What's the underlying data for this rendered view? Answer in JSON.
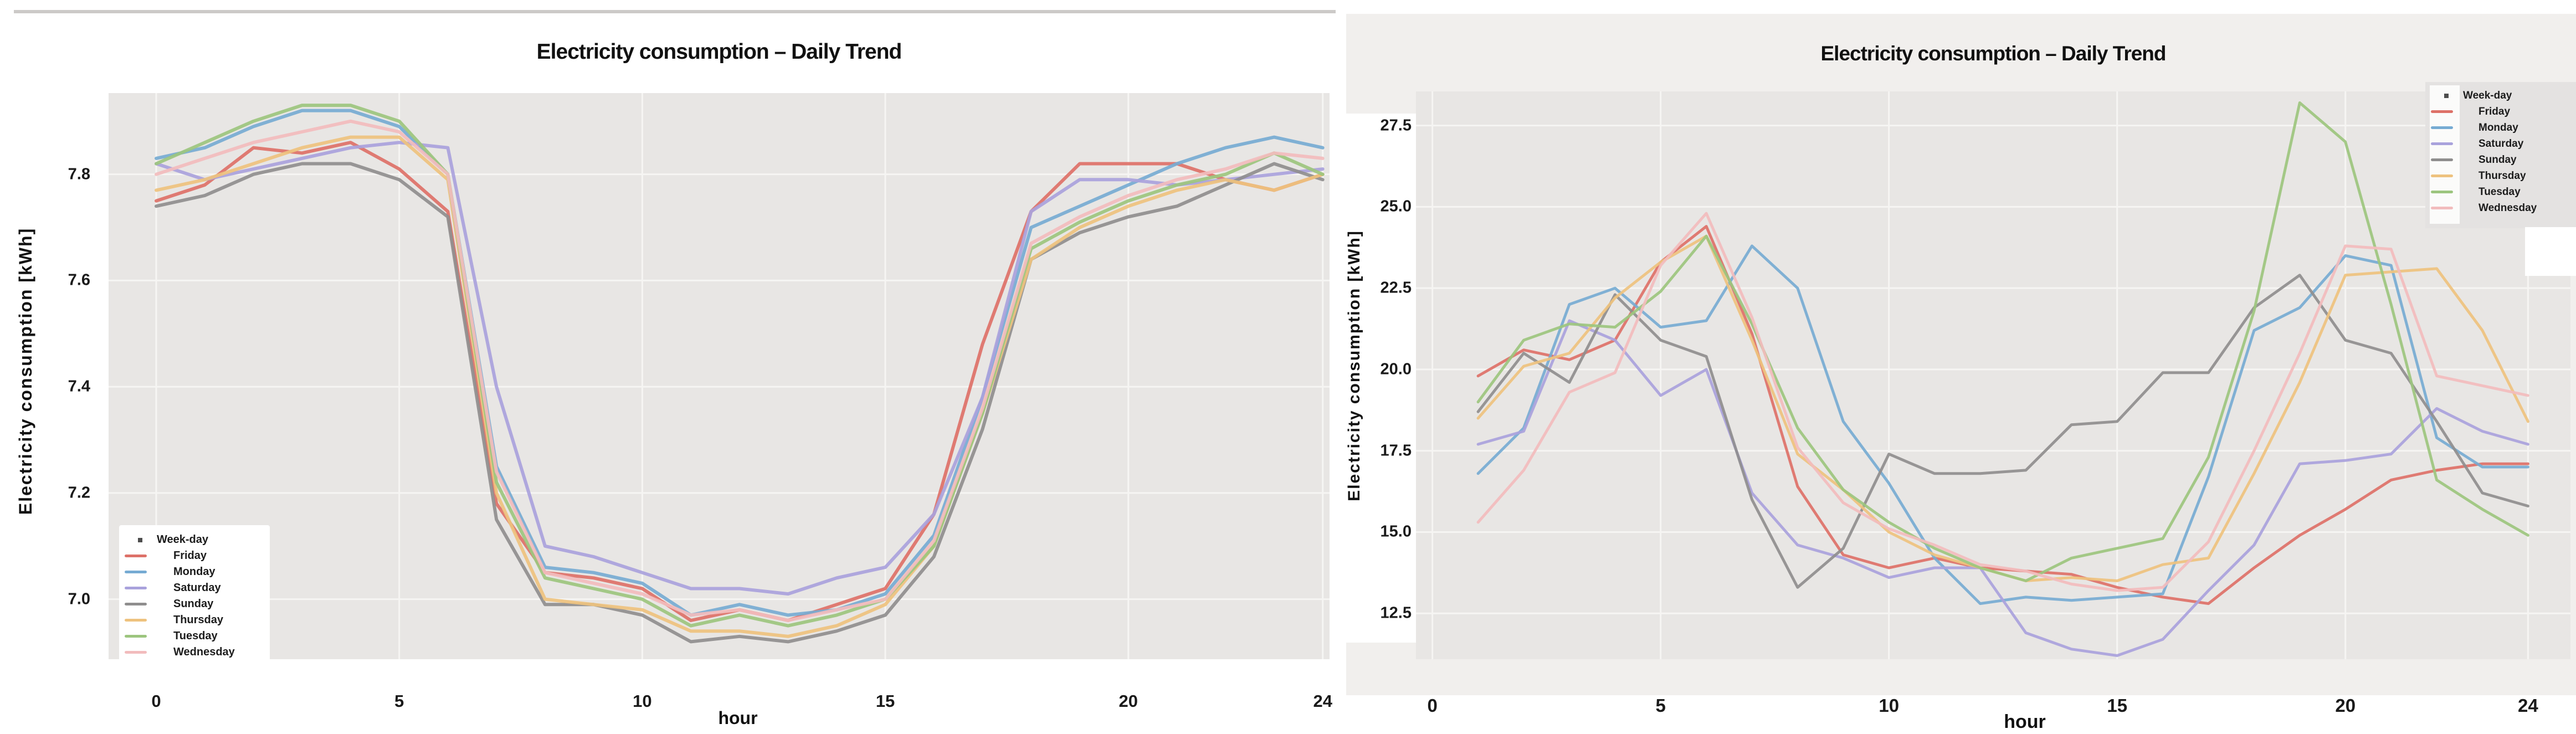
{
  "chart_data": [
    {
      "type": "line",
      "title": "Electricity consumption – Daily Trend",
      "xlabel": "hour",
      "ylabel": "Electricity consumption [kWh]",
      "x_ticks": [
        0,
        5,
        10,
        15,
        20,
        24
      ],
      "x_tick_labels": [
        "0",
        "5",
        "10",
        "15",
        "20",
        "24"
      ],
      "y_ticks": [
        7.0,
        7.2,
        7.4,
        7.6,
        7.8
      ],
      "y_tick_labels": [
        "7.0",
        "7.2",
        "7.4",
        "7.6",
        "7.8"
      ],
      "xlim": [
        -0.98,
        24.14
      ],
      "ylim": [
        6.887,
        7.953
      ],
      "grid": true,
      "colors": {
        "plot_bg": "#e8e6e4",
        "grid": "#f6f5f3"
      },
      "legend": {
        "position": "bottom-left",
        "entries": [
          {
            "label": "Week-day",
            "color": "#4d4d4d",
            "marker": true
          },
          {
            "label": "Friday",
            "color": "#dd7168"
          },
          {
            "label": "Monday",
            "color": "#76abd3"
          },
          {
            "label": "Saturday",
            "color": "#a9a2dc"
          },
          {
            "label": "Sunday",
            "color": "#8f8e8e"
          },
          {
            "label": "Thursday",
            "color": "#eec27e"
          },
          {
            "label": "Tuesday",
            "color": "#9cc57e"
          },
          {
            "label": "Wednesday",
            "color": "#f2bcbd"
          }
        ]
      },
      "x_start_hour": 0,
      "series": [
        {
          "name": "Friday",
          "color": "#dd7168",
          "values": [
            7.75,
            7.78,
            7.85,
            7.84,
            7.86,
            7.81,
            7.73,
            7.18,
            7.05,
            7.04,
            7.02,
            6.96,
            6.98,
            6.96,
            6.99,
            7.02,
            7.16,
            7.48,
            7.73,
            7.82,
            7.82,
            7.82,
            7.79,
            7.77,
            7.8
          ]
        },
        {
          "name": "Monday",
          "color": "#76abd3",
          "values": [
            7.83,
            7.85,
            7.89,
            7.92,
            7.92,
            7.89,
            7.8,
            7.25,
            7.06,
            7.05,
            7.03,
            6.97,
            6.99,
            6.97,
            6.98,
            7.01,
            7.12,
            7.38,
            7.7,
            7.74,
            7.78,
            7.82,
            7.85,
            7.87,
            7.85
          ]
        },
        {
          "name": "Saturday",
          "color": "#a9a2dc",
          "values": [
            7.82,
            7.79,
            7.81,
            7.83,
            7.85,
            7.86,
            7.85,
            7.4,
            7.1,
            7.08,
            7.05,
            7.02,
            7.02,
            7.01,
            7.04,
            7.06,
            7.16,
            7.38,
            7.73,
            7.79,
            7.79,
            7.78,
            7.79,
            7.8,
            7.81
          ]
        },
        {
          "name": "Sunday",
          "color": "#8f8e8e",
          "values": [
            7.74,
            7.76,
            7.8,
            7.82,
            7.82,
            7.79,
            7.72,
            7.15,
            6.99,
            6.99,
            6.97,
            6.92,
            6.93,
            6.92,
            6.94,
            6.97,
            7.08,
            7.32,
            7.64,
            7.69,
            7.72,
            7.74,
            7.78,
            7.82,
            7.79
          ]
        },
        {
          "name": "Thursday",
          "color": "#eec27e",
          "values": [
            7.77,
            7.79,
            7.82,
            7.85,
            7.87,
            7.87,
            7.79,
            7.2,
            7.0,
            6.99,
            6.98,
            6.94,
            6.94,
            6.93,
            6.95,
            6.99,
            7.1,
            7.35,
            7.64,
            7.7,
            7.74,
            7.77,
            7.79,
            7.77,
            7.8
          ]
        },
        {
          "name": "Tuesday",
          "color": "#9cc57e",
          "values": [
            7.82,
            7.86,
            7.9,
            7.93,
            7.93,
            7.9,
            7.8,
            7.22,
            7.04,
            7.02,
            7.0,
            6.95,
            6.97,
            6.95,
            6.97,
            7.0,
            7.1,
            7.35,
            7.66,
            7.71,
            7.75,
            7.78,
            7.8,
            7.84,
            7.8
          ]
        },
        {
          "name": "Wednesday",
          "color": "#f2bcbd",
          "values": [
            7.8,
            7.83,
            7.86,
            7.88,
            7.9,
            7.88,
            7.8,
            7.24,
            7.05,
            7.03,
            7.01,
            6.97,
            6.98,
            6.96,
            6.98,
            7.0,
            7.11,
            7.36,
            7.67,
            7.72,
            7.76,
            7.79,
            7.81,
            7.84,
            7.83
          ]
        }
      ]
    },
    {
      "type": "line",
      "title": "Electricity consumption – Daily Trend",
      "xlabel": "hour",
      "ylabel": "Electricity consumption [kWh]",
      "x_ticks": [
        0,
        5,
        10,
        15,
        20,
        24
      ],
      "x_tick_labels": [
        "0",
        "5",
        "10",
        "15",
        "20",
        "24"
      ],
      "y_ticks": [
        12.5,
        15.0,
        17.5,
        20.0,
        22.5,
        25.0,
        27.5
      ],
      "y_tick_labels": [
        "12.5",
        "15.0",
        "17.5",
        "20.0",
        "22.5",
        "25.0",
        "27.5"
      ],
      "xlim": [
        -0.36,
        24.93
      ],
      "ylim": [
        11.09,
        28.55
      ],
      "grid": true,
      "colors": {
        "plot_bg": "#e8e6e4",
        "grid": "#f6f5f3"
      },
      "legend": {
        "position": "top-right",
        "entries": [
          {
            "label": "Week-day",
            "color": "#4d4d4d",
            "marker": true
          },
          {
            "label": "Friday",
            "color": "#dd7168"
          },
          {
            "label": "Monday",
            "color": "#76abd3"
          },
          {
            "label": "Saturday",
            "color": "#a9a2dc"
          },
          {
            "label": "Sunday",
            "color": "#8f8e8e"
          },
          {
            "label": "Thursday",
            "color": "#eec27e"
          },
          {
            "label": "Tuesday",
            "color": "#9cc57e"
          },
          {
            "label": "Wednesday",
            "color": "#f2bcbd"
          }
        ]
      },
      "x_start_hour": 1,
      "series": [
        {
          "name": "Friday",
          "color": "#dd7168",
          "values": [
            19.8,
            20.6,
            20.3,
            20.9,
            23.3,
            24.4,
            21.1,
            16.4,
            14.3,
            13.9,
            14.2,
            13.9,
            13.8,
            13.7,
            13.3,
            13.0,
            12.8,
            13.9,
            14.9,
            15.7,
            16.6,
            16.9,
            17.1,
            17.1
          ]
        },
        {
          "name": "Monday",
          "color": "#76abd3",
          "values": [
            16.8,
            18.2,
            22.0,
            22.5,
            21.3,
            21.5,
            23.8,
            22.5,
            18.4,
            16.5,
            14.2,
            12.8,
            13.0,
            12.9,
            13.0,
            13.1,
            16.7,
            21.2,
            21.9,
            23.5,
            23.2,
            17.9,
            17.0,
            17.0
          ]
        },
        {
          "name": "Saturday",
          "color": "#a9a2dc",
          "values": [
            17.7,
            18.1,
            21.5,
            20.9,
            19.2,
            20.0,
            16.2,
            14.6,
            14.2,
            13.6,
            13.9,
            13.9,
            11.9,
            11.4,
            11.2,
            11.7,
            13.2,
            14.6,
            17.1,
            17.2,
            17.4,
            18.8,
            18.1,
            17.7
          ]
        },
        {
          "name": "Sunday",
          "color": "#8f8e8e",
          "values": [
            18.7,
            20.5,
            19.6,
            22.3,
            20.9,
            20.4,
            16.0,
            13.3,
            14.5,
            17.4,
            16.8,
            16.8,
            16.9,
            18.3,
            18.4,
            19.9,
            19.9,
            21.9,
            22.9,
            20.9,
            20.5,
            18.4,
            16.2,
            15.8
          ]
        },
        {
          "name": "Thursday",
          "color": "#eec27e",
          "values": [
            18.5,
            20.1,
            20.5,
            22.2,
            23.3,
            24.1,
            20.9,
            17.4,
            16.3,
            15.0,
            14.3,
            13.9,
            13.5,
            13.6,
            13.5,
            14.0,
            14.2,
            16.8,
            19.6,
            22.9,
            23.0,
            23.1,
            21.2,
            18.4
          ]
        },
        {
          "name": "Tuesday",
          "color": "#9cc57e",
          "values": [
            19.0,
            20.9,
            21.4,
            21.3,
            22.4,
            24.1,
            21.4,
            18.2,
            16.3,
            15.3,
            14.5,
            13.9,
            13.5,
            14.2,
            14.5,
            14.8,
            17.3,
            21.8,
            28.2,
            27.0,
            22.0,
            16.6,
            15.7,
            14.9
          ]
        },
        {
          "name": "Wednesday",
          "color": "#f2bcbd",
          "values": [
            15.3,
            16.9,
            19.3,
            19.9,
            23.2,
            24.8,
            21.6,
            17.6,
            15.9,
            15.1,
            14.6,
            14.0,
            13.8,
            13.4,
            13.2,
            13.3,
            14.7,
            17.5,
            20.5,
            23.8,
            23.7,
            19.8,
            19.5,
            19.2
          ]
        }
      ]
    }
  ]
}
